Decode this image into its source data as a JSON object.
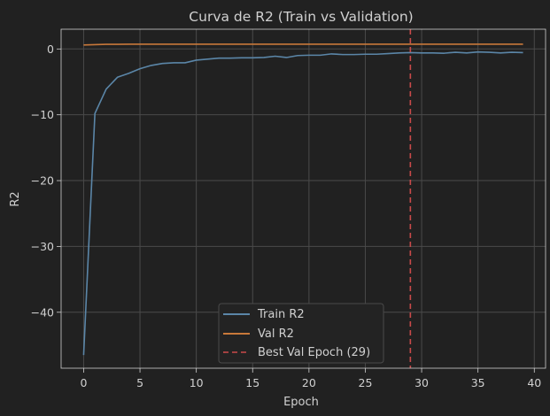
{
  "chart_data": {
    "type": "line",
    "title": "Curva de R2 (Train vs Validation)",
    "xlabel": "Epoch",
    "ylabel": "R2",
    "xlim": [
      -2,
      41
    ],
    "ylim": [
      -48.5,
      3.0
    ],
    "xticks": [
      0,
      5,
      10,
      15,
      20,
      25,
      30,
      35,
      40
    ],
    "yticks": [
      0,
      -10,
      -20,
      -30,
      -40
    ],
    "ytick_labels": [
      "0",
      "−10",
      "−20",
      "−30",
      "−40"
    ],
    "grid": true,
    "legend_position": "lower-center",
    "x": [
      0,
      1,
      2,
      3,
      4,
      5,
      6,
      7,
      8,
      9,
      10,
      11,
      12,
      13,
      14,
      15,
      16,
      17,
      18,
      19,
      20,
      21,
      22,
      23,
      24,
      25,
      26,
      27,
      28,
      29,
      30,
      31,
      32,
      33,
      34,
      35,
      36,
      37,
      38,
      39
    ],
    "series": [
      {
        "name": "Train R2",
        "color": "#5b86a8",
        "style": "solid",
        "values": [
          -46.5,
          -9.8,
          -6.1,
          -4.3,
          -3.7,
          -3.0,
          -2.5,
          -2.2,
          -2.1,
          -2.1,
          -1.7,
          -1.55,
          -1.4,
          -1.4,
          -1.35,
          -1.35,
          -1.3,
          -1.1,
          -1.3,
          -1.0,
          -0.95,
          -0.95,
          -0.75,
          -0.85,
          -0.85,
          -0.8,
          -0.8,
          -0.7,
          -0.6,
          -0.55,
          -0.6,
          -0.6,
          -0.65,
          -0.5,
          -0.6,
          -0.45,
          -0.5,
          -0.6,
          -0.5,
          -0.55
        ]
      },
      {
        "name": "Val R2",
        "color": "#c8783a",
        "style": "solid",
        "values": [
          0.6,
          0.65,
          0.7,
          0.7,
          0.72,
          0.72,
          0.72,
          0.72,
          0.72,
          0.72,
          0.72,
          0.72,
          0.72,
          0.72,
          0.72,
          0.72,
          0.72,
          0.72,
          0.72,
          0.72,
          0.72,
          0.72,
          0.72,
          0.72,
          0.72,
          0.72,
          0.72,
          0.72,
          0.72,
          0.72,
          0.72,
          0.72,
          0.72,
          0.72,
          0.72,
          0.72,
          0.72,
          0.72,
          0.72,
          0.72
        ]
      }
    ],
    "annotations": [
      {
        "type": "vline",
        "x": 29,
        "label": "Best Val Epoch (29)",
        "color": "#c94a4a",
        "style": "dashed"
      }
    ]
  },
  "colors": {
    "background": "#212121",
    "grid": "#4a4a4a",
    "text": "#d0d0d0"
  }
}
